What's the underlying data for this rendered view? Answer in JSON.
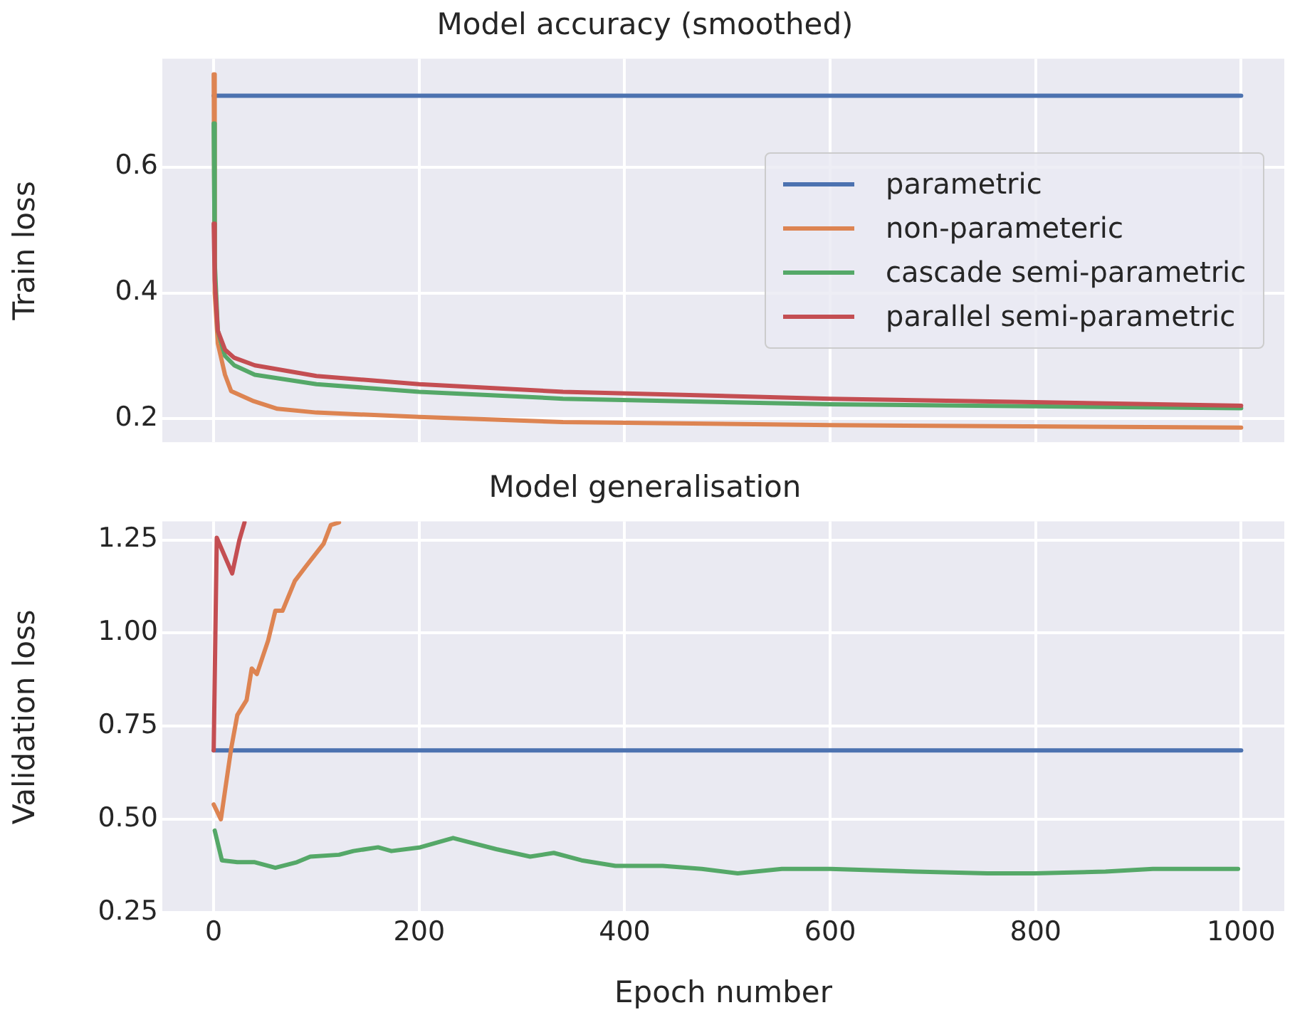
{
  "chart_data": [
    {
      "type": "line",
      "title": "Model accuracy (smoothed)",
      "ylabel": "Train loss",
      "xlim": [
        -50,
        1042
      ],
      "xticks": [
        0,
        200,
        400,
        600,
        800,
        1000
      ],
      "ylim": [
        0.163,
        0.772
      ],
      "yticks": [
        0.2,
        0.4,
        0.6
      ],
      "grid": true,
      "legend": "right",
      "tick_labels": "y",
      "series": [
        {
          "name": "parametric",
          "color": "#4c72b0",
          "x": [
            0,
            1000
          ],
          "values": [
            0.713,
            0.713
          ]
        },
        {
          "name": "non-parameteric",
          "color": "#dd8452",
          "x": [
            0,
            1,
            4,
            11,
            17,
            39,
            62,
            100,
            200,
            340,
            600,
            1000
          ],
          "values": [
            0.747,
            0.4,
            0.32,
            0.27,
            0.244,
            0.228,
            0.216,
            0.21,
            0.203,
            0.195,
            0.19,
            0.186
          ]
        },
        {
          "name": "cascade semi-parametric",
          "color": "#55a868",
          "x": [
            0,
            1,
            4,
            11,
            20,
            40,
            100,
            200,
            340,
            600,
            1000
          ],
          "values": [
            0.669,
            0.45,
            0.34,
            0.3,
            0.285,
            0.27,
            0.255,
            0.243,
            0.232,
            0.223,
            0.217
          ]
        },
        {
          "name": "parallel semi-parametric",
          "color": "#c44e52",
          "x": [
            0,
            1,
            4,
            11,
            20,
            40,
            100,
            200,
            340,
            600,
            1000
          ],
          "values": [
            0.51,
            0.42,
            0.34,
            0.31,
            0.297,
            0.285,
            0.268,
            0.255,
            0.243,
            0.232,
            0.221
          ]
        }
      ]
    },
    {
      "type": "line",
      "title": "Model generalisation",
      "xlabel": "Epoch number",
      "ylabel": "Validation loss",
      "xlim": [
        -50,
        1042
      ],
      "xticks": [
        0,
        200,
        400,
        600,
        800,
        1000
      ],
      "ylim": [
        0.25,
        1.3
      ],
      "yticks": [
        {
          "value": 0.25,
          "label": "0.25"
        },
        {
          "value": 0.5,
          "label": "0.50"
        },
        {
          "value": 0.75,
          "label": "0.75"
        },
        {
          "value": 1,
          "label": "1.00"
        },
        {
          "value": 1.25,
          "label": "1.25"
        }
      ],
      "grid": true,
      "series": [
        {
          "color": "#4c72b0",
          "x": [
            0,
            1000
          ],
          "values": [
            0.685,
            0.685
          ]
        },
        {
          "color": "#dd8452",
          "x": [
            0,
            7,
            17,
            23,
            32,
            37,
            42,
            53,
            60,
            67,
            79,
            90,
            107,
            114,
            122
          ],
          "values": [
            0.54,
            0.5,
            0.69,
            0.78,
            0.82,
            0.905,
            0.89,
            0.98,
            1.06,
            1.06,
            1.14,
            1.18,
            1.24,
            1.29,
            1.297
          ]
        },
        {
          "color": "#55a868",
          "x": [
            1,
            8,
            23,
            40,
            60,
            81,
            94,
            122,
            136,
            160,
            173,
            201,
            233,
            247,
            275,
            308,
            331,
            358,
            391,
            437,
            475,
            510,
            553,
            600,
            683,
            753,
            799,
            868,
            914,
            997
          ],
          "values": [
            0.47,
            0.39,
            0.385,
            0.385,
            0.37,
            0.385,
            0.4,
            0.405,
            0.415,
            0.425,
            0.415,
            0.425,
            0.45,
            0.44,
            0.42,
            0.4,
            0.41,
            0.39,
            0.375,
            0.375,
            0.367,
            0.355,
            0.367,
            0.367,
            0.36,
            0.355,
            0.355,
            0.36,
            0.367,
            0.367
          ]
        },
        {
          "color": "#c44e52",
          "x": [
            0,
            3,
            18,
            25,
            30
          ],
          "values": [
            0.685,
            1.256,
            1.16,
            1.25,
            1.297
          ]
        }
      ]
    }
  ]
}
